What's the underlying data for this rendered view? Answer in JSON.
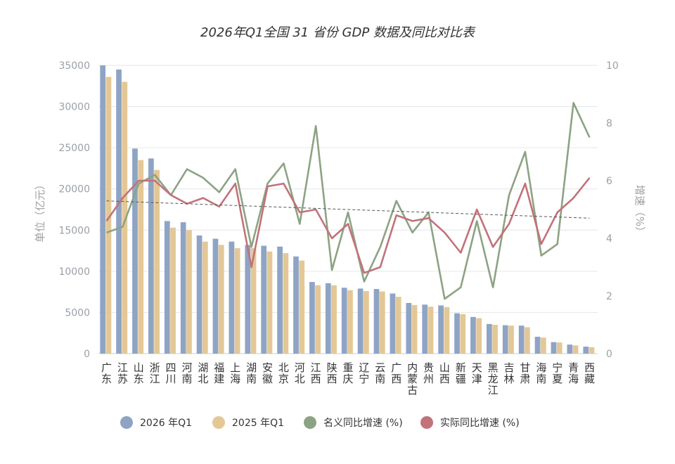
{
  "chart_data": {
    "type": "bar",
    "title": "2026年Q1全国 31 省份 GDP 数据及同比对比表",
    "ylabel": "单位（亿元）",
    "y2label": "增速（%）",
    "ylim": [
      0,
      35000
    ],
    "y2lim": [
      0,
      10
    ],
    "yticks": [
      "0",
      "5000",
      "10000",
      "15000",
      "20000",
      "25000",
      "30000",
      "35000"
    ],
    "y2ticks": [
      "0",
      "2",
      "4",
      "6",
      "8",
      "10"
    ],
    "categories": [
      "广东",
      "江苏",
      "山东",
      "浙江",
      "四川",
      "河南",
      "湖北",
      "福建",
      "上海",
      "湖南",
      "安徽",
      "北京",
      "河北",
      "江西",
      "陕西",
      "重庆",
      "辽宁",
      "云南",
      "广西",
      "内蒙古",
      "贵州",
      "山西",
      "新疆",
      "天津",
      "黑龙江",
      "吉林",
      "甘肃",
      "海南",
      "宁夏",
      "青海",
      "西藏"
    ],
    "series": [
      {
        "name": "2026 年Q1",
        "color": "#8fa4c4",
        "axis": "left",
        "kind": "bar",
        "values": [
          35000,
          34500,
          24900,
          23700,
          16100,
          15950,
          14350,
          13950,
          13600,
          13200,
          13100,
          13000,
          11800,
          8700,
          8550,
          8000,
          7900,
          7850,
          7300,
          6150,
          5950,
          5850,
          4900,
          4450,
          3600,
          3450,
          3400,
          2050,
          1400,
          1100,
          850
        ]
      },
      {
        "name": "2025 年Q1",
        "color": "#e3c896",
        "axis": "left",
        "kind": "bar",
        "values": [
          33600,
          33000,
          23500,
          22300,
          15300,
          15000,
          13600,
          13200,
          12800,
          12800,
          12400,
          12200,
          11300,
          8300,
          8300,
          7700,
          7600,
          7550,
          6900,
          5900,
          5700,
          5650,
          4800,
          4300,
          3500,
          3400,
          3200,
          1950,
          1350,
          1000,
          780
        ]
      },
      {
        "name": "名义同比增速 (%)",
        "color": "#8ca383",
        "axis": "right",
        "kind": "line",
        "values": [
          4.2,
          4.4,
          5.9,
          6.2,
          5.5,
          6.4,
          6.1,
          5.6,
          6.4,
          3.7,
          5.9,
          6.6,
          4.5,
          7.9,
          2.9,
          4.9,
          2.5,
          3.7,
          5.3,
          4.2,
          4.9,
          1.9,
          2.3,
          4.6,
          2.3,
          5.5,
          7.0,
          3.4,
          3.8,
          8.7,
          7.5
        ]
      },
      {
        "name": "实际同比增速 (%)",
        "color": "#c2727a",
        "axis": "right",
        "kind": "line",
        "values": [
          4.6,
          5.4,
          6.0,
          6.0,
          5.5,
          5.2,
          5.4,
          5.1,
          5.9,
          3.0,
          5.8,
          5.9,
          4.9,
          5.0,
          4.0,
          4.5,
          2.8,
          3.0,
          4.8,
          4.6,
          4.7,
          4.2,
          3.5,
          5.0,
          3.7,
          4.5,
          5.9,
          3.8,
          4.9,
          5.4,
          6.1
        ]
      }
    ],
    "trendline": {
      "axis": "right",
      "start": 5.3,
      "end": 4.7
    },
    "grid": true,
    "legend": "bottom"
  }
}
